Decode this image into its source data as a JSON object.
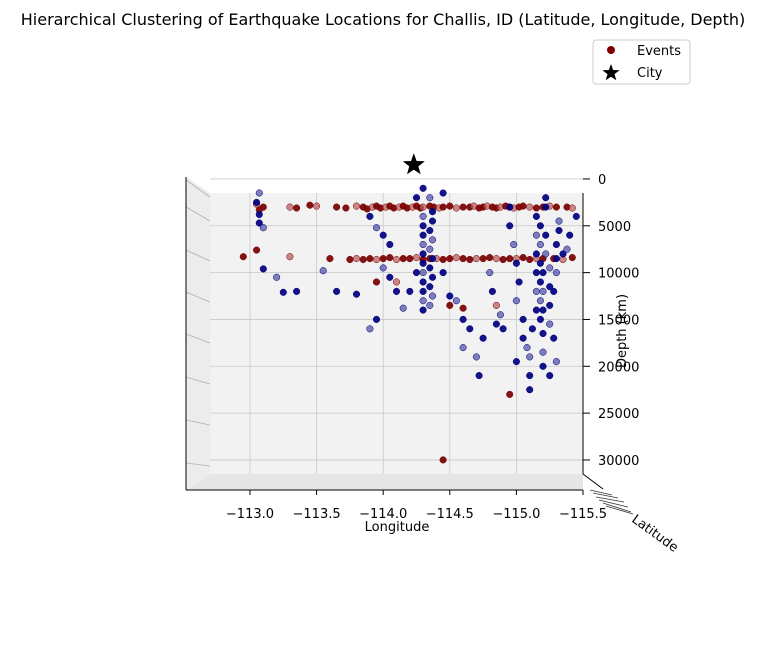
{
  "chart_data": {
    "type": "scatter",
    "projection": "3d",
    "title": "Hierarchical Clustering of Earthquake Locations for Challis, ID (Latitude, Longitude, Depth)",
    "xlabel": "Longitude",
    "ylabel": "Latitude",
    "zlabel": "Depth (km)",
    "xlim": [
      -112.7,
      -115.5
    ],
    "zlim": [
      -1500,
      -31500
    ],
    "x_ticks": [
      -113.0,
      -113.5,
      -114.0,
      -114.5,
      -115.0,
      -115.5
    ],
    "x_tick_labels": [
      "−113.0",
      "−113.5",
      "−114.0",
      "−114.5",
      "−115.0",
      "−115.5"
    ],
    "z_ticks": [
      0,
      -5000,
      -10000,
      -15000,
      -20000,
      -25000,
      -30000
    ],
    "z_tick_labels": [
      "0",
      "5000",
      "10000",
      "15000",
      "20000",
      "25000",
      "30000"
    ],
    "grid": true,
    "legend": {
      "placement": "top-right",
      "entries": [
        {
          "label": "Events",
          "marker": "circle",
          "color": "#7a0000"
        },
        {
          "label": "City",
          "marker": "star",
          "color": "#000000"
        }
      ]
    },
    "colors": {
      "cluster_red": "#7a0000",
      "cluster_red_light": "#b86060",
      "cluster_blue": "#000080",
      "cluster_blue_light": "#5555a8",
      "pane": "#f2f2f2"
    },
    "city": {
      "name": "Challis, ID",
      "x": -114.23,
      "z": 1500
    },
    "series": [
      {
        "cluster": 1,
        "color": "#7a0000",
        "points": [
          [
            -113.05,
            -2700
          ],
          [
            -113.1,
            -3000
          ],
          [
            -113.07,
            -3300
          ],
          [
            -113.3,
            -3000
          ],
          [
            -113.35,
            -3100
          ],
          [
            -113.45,
            -2800
          ],
          [
            -113.5,
            -2900
          ],
          [
            -113.65,
            -3000
          ],
          [
            -113.72,
            -3100
          ],
          [
            -113.8,
            -2900
          ],
          [
            -113.85,
            -3000
          ],
          [
            -113.88,
            -3200
          ],
          [
            -113.92,
            -3000
          ],
          [
            -113.95,
            -2900
          ],
          [
            -113.98,
            -3100
          ],
          [
            -114.02,
            -3000
          ],
          [
            -114.05,
            -2900
          ],
          [
            -114.08,
            -3100
          ],
          [
            -114.12,
            -3000
          ],
          [
            -114.15,
            -2900
          ],
          [
            -114.18,
            -3100
          ],
          [
            -114.22,
            -3000
          ],
          [
            -114.25,
            -2900
          ],
          [
            -114.28,
            -3100
          ],
          [
            -114.3,
            -3000
          ],
          [
            -114.35,
            -2900
          ],
          [
            -114.38,
            -3000
          ],
          [
            -114.42,
            -3100
          ],
          [
            -114.45,
            -3000
          ],
          [
            -114.5,
            -2900
          ],
          [
            -114.55,
            -3100
          ],
          [
            -114.6,
            -3000
          ],
          [
            -114.65,
            -3000
          ],
          [
            -114.68,
            -2900
          ],
          [
            -114.72,
            -3100
          ],
          [
            -114.75,
            -3000
          ],
          [
            -114.78,
            -2900
          ],
          [
            -114.82,
            -3000
          ],
          [
            -114.85,
            -3100
          ],
          [
            -114.88,
            -3000
          ],
          [
            -114.92,
            -2900
          ],
          [
            -114.95,
            -3000
          ],
          [
            -114.98,
            -3100
          ],
          [
            -115.02,
            -3000
          ],
          [
            -115.05,
            -2900
          ],
          [
            -115.1,
            -3000
          ],
          [
            -115.15,
            -3100
          ],
          [
            -115.2,
            -3000
          ],
          [
            -115.25,
            -2900
          ],
          [
            -115.3,
            -3000
          ],
          [
            -115.38,
            -3000
          ],
          [
            -115.42,
            -3100
          ],
          [
            -112.95,
            -8300
          ],
          [
            -113.05,
            -7600
          ],
          [
            -113.3,
            -8300
          ],
          [
            -113.6,
            -8500
          ],
          [
            -113.75,
            -8600
          ],
          [
            -113.8,
            -8500
          ],
          [
            -113.85,
            -8600
          ],
          [
            -113.9,
            -8500
          ],
          [
            -113.95,
            -8600
          ],
          [
            -114.0,
            -8500
          ],
          [
            -114.05,
            -8400
          ],
          [
            -114.1,
            -8600
          ],
          [
            -114.15,
            -8500
          ],
          [
            -114.2,
            -8500
          ],
          [
            -114.25,
            -8400
          ],
          [
            -114.3,
            -8600
          ],
          [
            -114.35,
            -8500
          ],
          [
            -114.4,
            -8500
          ],
          [
            -114.45,
            -8600
          ],
          [
            -114.5,
            -8500
          ],
          [
            -114.55,
            -8400
          ],
          [
            -114.6,
            -8500
          ],
          [
            -114.65,
            -8600
          ],
          [
            -114.7,
            -8500
          ],
          [
            -114.75,
            -8500
          ],
          [
            -114.8,
            -8400
          ],
          [
            -114.85,
            -8500
          ],
          [
            -114.9,
            -8600
          ],
          [
            -114.95,
            -8500
          ],
          [
            -115.0,
            -8500
          ],
          [
            -115.05,
            -8400
          ],
          [
            -115.1,
            -8600
          ],
          [
            -115.15,
            -8500
          ],
          [
            -115.2,
            -8500
          ],
          [
            -115.28,
            -8500
          ],
          [
            -115.35,
            -8600
          ],
          [
            -115.42,
            -8400
          ],
          [
            -113.95,
            -11000
          ],
          [
            -114.1,
            -11000
          ],
          [
            -114.5,
            -13500
          ],
          [
            -114.6,
            -13800
          ],
          [
            -114.85,
            -13500
          ],
          [
            -114.95,
            -23000
          ],
          [
            -114.45,
            -30000
          ]
        ]
      },
      {
        "cluster": 2,
        "color": "#000080",
        "points": [
          [
            -113.07,
            -1500
          ],
          [
            -113.07,
            -3800
          ],
          [
            -113.07,
            -4700
          ],
          [
            -113.1,
            -5200
          ],
          [
            -113.05,
            -2500
          ],
          [
            -113.1,
            -9600
          ],
          [
            -113.2,
            -10500
          ],
          [
            -113.25,
            -12100
          ],
          [
            -113.35,
            -12000
          ],
          [
            -113.55,
            -9800
          ],
          [
            -113.65,
            -12000
          ],
          [
            -113.8,
            -12300
          ],
          [
            -113.9,
            -16000
          ],
          [
            -113.95,
            -15000
          ],
          [
            -113.9,
            -4000
          ],
          [
            -113.95,
            -5200
          ],
          [
            -114.0,
            -6000
          ],
          [
            -114.05,
            -7000
          ],
          [
            -114.0,
            -9500
          ],
          [
            -114.05,
            -10500
          ],
          [
            -114.1,
            -12000
          ],
          [
            -114.15,
            -13800
          ],
          [
            -114.2,
            -12000
          ],
          [
            -114.25,
            -10000
          ],
          [
            -114.3,
            -4000
          ],
          [
            -114.3,
            -5000
          ],
          [
            -114.3,
            -6000
          ],
          [
            -114.3,
            -7000
          ],
          [
            -114.3,
            -8000
          ],
          [
            -114.3,
            -9000
          ],
          [
            -114.3,
            -10000
          ],
          [
            -114.3,
            -11000
          ],
          [
            -114.3,
            -12000
          ],
          [
            -114.3,
            -13000
          ],
          [
            -114.3,
            -14000
          ],
          [
            -114.35,
            -5500
          ],
          [
            -114.35,
            -7500
          ],
          [
            -114.35,
            -9500
          ],
          [
            -114.35,
            -11500
          ],
          [
            -114.35,
            -13500
          ],
          [
            -114.37,
            -3500
          ],
          [
            -114.37,
            -4500
          ],
          [
            -114.37,
            -6500
          ],
          [
            -114.37,
            -8500
          ],
          [
            -114.37,
            -10500
          ],
          [
            -114.37,
            -12500
          ],
          [
            -114.25,
            -2000
          ],
          [
            -114.3,
            -1000
          ],
          [
            -114.35,
            -2000
          ],
          [
            -114.45,
            -10000
          ],
          [
            -114.5,
            -12500
          ],
          [
            -114.55,
            -13000
          ],
          [
            -114.6,
            -15000
          ],
          [
            -114.65,
            -16000
          ],
          [
            -114.7,
            -19000
          ],
          [
            -114.72,
            -21000
          ],
          [
            -114.75,
            -17000
          ],
          [
            -114.8,
            -10000
          ],
          [
            -114.82,
            -12000
          ],
          [
            -114.85,
            -15500
          ],
          [
            -114.88,
            -14500
          ],
          [
            -114.9,
            -16000
          ],
          [
            -114.45,
            -1500
          ],
          [
            -114.6,
            -18000
          ],
          [
            -114.95,
            -3000
          ],
          [
            -114.95,
            -5000
          ],
          [
            -114.98,
            -7000
          ],
          [
            -115.0,
            -9000
          ],
          [
            -115.02,
            -11000
          ],
          [
            -115.0,
            -13000
          ],
          [
            -115.05,
            -15000
          ],
          [
            -115.05,
            -17000
          ],
          [
            -115.1,
            -19000
          ],
          [
            -115.1,
            -21000
          ],
          [
            -115.0,
            -19500
          ],
          [
            -115.08,
            -18000
          ],
          [
            -115.12,
            -16000
          ],
          [
            -115.15,
            -14000
          ],
          [
            -115.15,
            -12000
          ],
          [
            -115.15,
            -10000
          ],
          [
            -115.15,
            -8000
          ],
          [
            -115.15,
            -6000
          ],
          [
            -115.15,
            -4000
          ],
          [
            -115.18,
            -5000
          ],
          [
            -115.18,
            -7000
          ],
          [
            -115.18,
            -9000
          ],
          [
            -115.18,
            -11000
          ],
          [
            -115.18,
            -13000
          ],
          [
            -115.18,
            -15000
          ],
          [
            -115.2,
            -16500
          ],
          [
            -115.2,
            -18500
          ],
          [
            -115.2,
            -20000
          ],
          [
            -115.2,
            -10000
          ],
          [
            -115.2,
            -12000
          ],
          [
            -115.2,
            -14000
          ],
          [
            -115.22,
            -6000
          ],
          [
            -115.22,
            -8000
          ],
          [
            -115.22,
            -3000
          ],
          [
            -115.22,
            -2000
          ],
          [
            -115.25,
            -9500
          ],
          [
            -115.25,
            -11500
          ],
          [
            -115.25,
            -13500
          ],
          [
            -115.25,
            -15500
          ],
          [
            -115.28,
            -17000
          ],
          [
            -115.28,
            -12000
          ],
          [
            -115.3,
            -10000
          ],
          [
            -115.3,
            -8500
          ],
          [
            -115.3,
            -7000
          ],
          [
            -115.32,
            -4500
          ],
          [
            -115.32,
            -5500
          ],
          [
            -115.35,
            -8000
          ],
          [
            -115.38,
            -7500
          ],
          [
            -115.4,
            -6000
          ],
          [
            -115.45,
            -4000
          ],
          [
            -115.3,
            -19500
          ],
          [
            -115.25,
            -21000
          ],
          [
            -115.1,
            -22500
          ]
        ]
      }
    ]
  }
}
